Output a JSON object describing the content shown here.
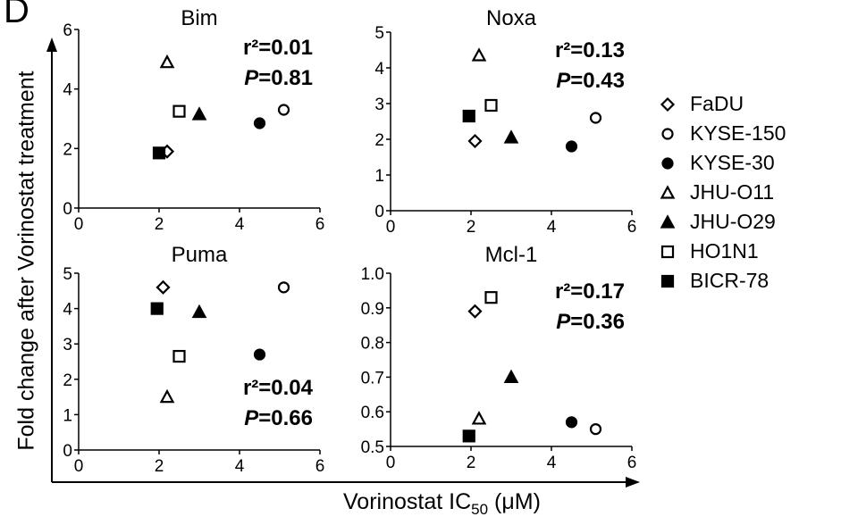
{
  "figure": {
    "panel_letter": "D",
    "ylabel": "Fold change after Vorinostat  treatment",
    "xlabel_main": "Vorinostat IC",
    "xlabel_sub": "50",
    "xlabel_unit": " (μM)"
  },
  "legend": [
    {
      "name": "FaDU",
      "marker": "diamond-open"
    },
    {
      "name": "KYSE-150",
      "marker": "circle-open"
    },
    {
      "name": "KYSE-30",
      "marker": "circle-filled"
    },
    {
      "name": "JHU-O11",
      "marker": "triangle-open"
    },
    {
      "name": "JHU-O29",
      "marker": "triangle-filled"
    },
    {
      "name": "HO1N1",
      "marker": "square-open"
    },
    {
      "name": "BICR-78",
      "marker": "square-filled"
    }
  ],
  "chart_data": [
    {
      "type": "scatter",
      "title": "Bim",
      "xlim": [
        0,
        6
      ],
      "ylim": [
        0,
        6
      ],
      "xticks": [
        "0",
        "2",
        "4",
        "6"
      ],
      "yticks": [
        "0",
        "2",
        "4",
        "6"
      ],
      "stats": {
        "r2": "r²=0.01",
        "p_prefix": "P",
        "p_value": "=0.81",
        "placement": "top-right"
      },
      "points": [
        {
          "series": "FaDU",
          "x": 2.2,
          "y": 1.9
        },
        {
          "series": "KYSE-150",
          "x": 5.1,
          "y": 3.3
        },
        {
          "series": "KYSE-30",
          "x": 4.5,
          "y": 2.85
        },
        {
          "series": "JHU-O11",
          "x": 2.2,
          "y": 4.9
        },
        {
          "series": "JHU-O29",
          "x": 3.0,
          "y": 3.15
        },
        {
          "series": "HO1N1",
          "x": 2.5,
          "y": 3.25
        },
        {
          "series": "BICR-78",
          "x": 2.0,
          "y": 1.85
        }
      ]
    },
    {
      "type": "scatter",
      "title": "Noxa",
      "xlim": [
        0,
        6
      ],
      "ylim": [
        0,
        5
      ],
      "xticks": [
        "0",
        "2",
        "4",
        "6"
      ],
      "yticks": [
        "0",
        "1",
        "2",
        "3",
        "4",
        "5"
      ],
      "stats": {
        "r2": "r²=0.13",
        "p_prefix": "P",
        "p_value": "=0.43",
        "placement": "top-right"
      },
      "points": [
        {
          "series": "FaDU",
          "x": 2.1,
          "y": 1.95
        },
        {
          "series": "KYSE-150",
          "x": 5.1,
          "y": 2.6
        },
        {
          "series": "KYSE-30",
          "x": 4.5,
          "y": 1.8
        },
        {
          "series": "JHU-O11",
          "x": 2.2,
          "y": 4.35
        },
        {
          "series": "JHU-O29",
          "x": 3.0,
          "y": 2.05
        },
        {
          "series": "HO1N1",
          "x": 2.5,
          "y": 2.95
        },
        {
          "series": "BICR-78",
          "x": 1.95,
          "y": 2.65
        }
      ]
    },
    {
      "type": "scatter",
      "title": "Puma",
      "xlim": [
        0,
        6
      ],
      "ylim": [
        0,
        5
      ],
      "xticks": [
        "0",
        "2",
        "4",
        "6"
      ],
      "yticks": [
        "0",
        "1",
        "2",
        "3",
        "4",
        "5"
      ],
      "stats": {
        "r2": "r²=0.04",
        "p_prefix": "P",
        "p_value": "=0.66",
        "placement": "bottom-right"
      },
      "points": [
        {
          "series": "FaDU",
          "x": 2.1,
          "y": 4.6
        },
        {
          "series": "KYSE-150",
          "x": 5.1,
          "y": 4.6
        },
        {
          "series": "KYSE-30",
          "x": 4.5,
          "y": 2.7
        },
        {
          "series": "JHU-O11",
          "x": 2.2,
          "y": 1.5
        },
        {
          "series": "JHU-O29",
          "x": 3.0,
          "y": 3.9
        },
        {
          "series": "HO1N1",
          "x": 2.5,
          "y": 2.65
        },
        {
          "series": "BICR-78",
          "x": 1.95,
          "y": 4.0
        }
      ]
    },
    {
      "type": "scatter",
      "title": "Mcl-1",
      "xlim": [
        0,
        6
      ],
      "ylim": [
        0.5,
        1.0
      ],
      "xticks": [
        "0",
        "2",
        "4",
        "6"
      ],
      "yticks": [
        "0.5",
        "0.6",
        "0.7",
        "0.8",
        "0.9",
        "1.0"
      ],
      "stats": {
        "r2": "r²=0.17",
        "p_prefix": "P",
        "p_value": "=0.36",
        "placement": "top-right"
      },
      "points": [
        {
          "series": "FaDU",
          "x": 2.1,
          "y": 0.89
        },
        {
          "series": "KYSE-150",
          "x": 5.1,
          "y": 0.55
        },
        {
          "series": "KYSE-30",
          "x": 4.5,
          "y": 0.57
        },
        {
          "series": "JHU-O11",
          "x": 2.2,
          "y": 0.58
        },
        {
          "series": "JHU-O29",
          "x": 3.0,
          "y": 0.7
        },
        {
          "series": "HO1N1",
          "x": 2.5,
          "y": 0.93
        },
        {
          "series": "BICR-78",
          "x": 1.95,
          "y": 0.53
        }
      ]
    }
  ]
}
